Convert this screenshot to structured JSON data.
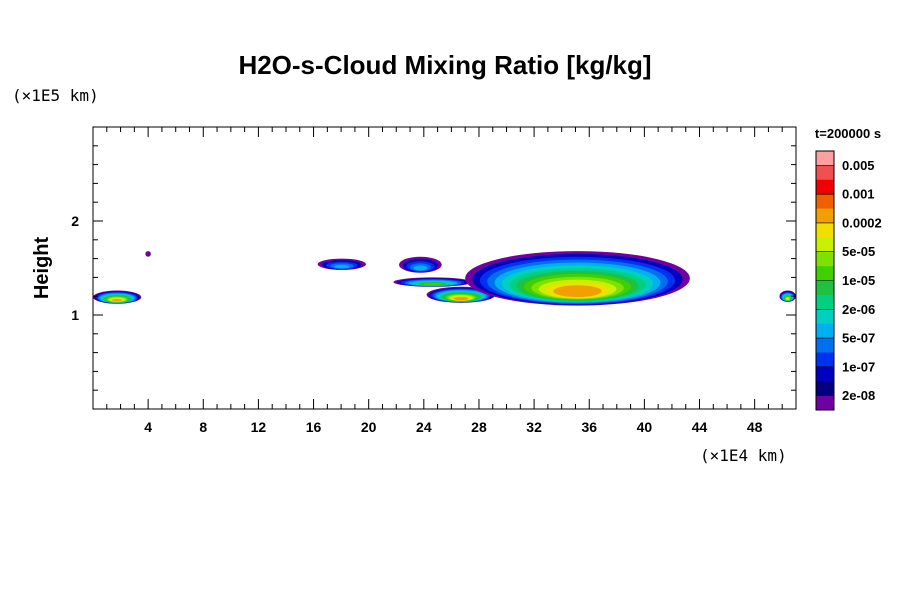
{
  "chart_data": {
    "type": "heatmap",
    "title": "H2O-s-Cloud Mixing Ratio [kg/kg]",
    "ylabel": "Height",
    "xlabel": "",
    "y_unit": "(×1E5 km)",
    "x_unit": "(×1E4 km)",
    "time_label": "t=200000 s",
    "xlim": [
      0,
      51
    ],
    "ylim": [
      0,
      3
    ],
    "x_ticks": [
      "4",
      "8",
      "12",
      "16",
      "20",
      "24",
      "28",
      "32",
      "36",
      "40",
      "44",
      "48"
    ],
    "y_ticks": [
      "1",
      "2"
    ],
    "colorbar": {
      "colors": [
        "#ffa0a0",
        "#f05050",
        "#f00000",
        "#f06000",
        "#f0a000",
        "#f0e000",
        "#c8f000",
        "#80e000",
        "#40d000",
        "#20c040",
        "#00d080",
        "#00d0c0",
        "#00b0f0",
        "#0070f0",
        "#0030f0",
        "#0000c0",
        "#000080",
        "#7000a0"
      ],
      "labels": [
        "0.005",
        "0.001",
        "0.0002",
        "5e-05",
        "1e-05",
        "2e-06",
        "5e-07",
        "1e-07",
        "2e-08"
      ]
    },
    "cloud_regions": [
      {
        "x_range": [
          0,
          3.5
        ],
        "y_range": [
          1.12,
          1.26
        ],
        "max_level": "0.0002"
      },
      {
        "x_range": [
          3.8,
          4.2
        ],
        "y_range": [
          1.62,
          1.68
        ],
        "max_level": "2e-08"
      },
      {
        "x_range": [
          16.3,
          19.8
        ],
        "y_range": [
          1.48,
          1.6
        ],
        "max_level": "5e-07"
      },
      {
        "x_range": [
          22.2,
          25.3
        ],
        "y_range": [
          1.45,
          1.62
        ],
        "max_level": "5e-07"
      },
      {
        "x_range": [
          21.8,
          27.5
        ],
        "y_range": [
          1.3,
          1.4
        ],
        "max_level": "1e-05"
      },
      {
        "x_range": [
          24.2,
          29.2
        ],
        "y_range": [
          1.13,
          1.3
        ],
        "max_level": "0.0002"
      },
      {
        "x_range": [
          27.0,
          43.3
        ],
        "y_range": [
          1.1,
          1.68
        ],
        "max_level": "0.0002"
      },
      {
        "x_range": [
          49.8,
          51
        ],
        "y_range": [
          1.14,
          1.26
        ],
        "max_level": "5e-05"
      }
    ]
  }
}
